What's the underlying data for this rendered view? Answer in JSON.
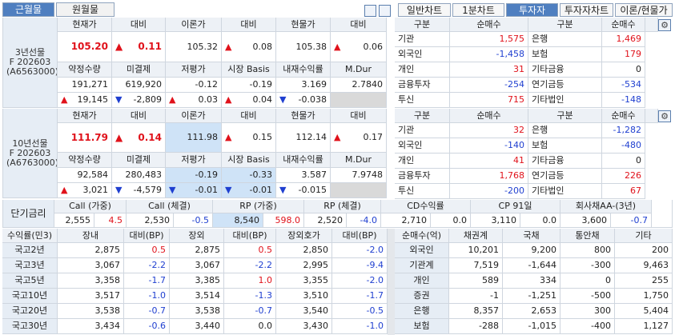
{
  "tabs": {
    "month": [
      "근월물",
      "원월물"
    ],
    "view": [
      "일반차트",
      "1분차트",
      "투자자",
      "투자자차트",
      "이론/현물가"
    ]
  },
  "futures": [
    {
      "name": "3년선물",
      "code": "F 202603",
      "id": "(A6563000)",
      "header1": [
        "현재가",
        "대비",
        "이론가",
        "대비",
        "현물가",
        "대비"
      ],
      "row1": [
        "105.20",
        {
          "arrow": "▲",
          "value": "0.11"
        },
        "105.32",
        {
          "arrow": "▲",
          "value": "0.08"
        },
        "105.38",
        {
          "arrow": "▲",
          "value": "0.06"
        }
      ],
      "header2": [
        "약정수량",
        "미결제",
        "저평가",
        "시장 Basis",
        "내재수익률",
        "M.Dur"
      ],
      "row2": [
        "191,271",
        "619,920",
        "-0.12",
        "-0.19",
        "3.169",
        "2.7840"
      ],
      "row3": [
        {
          "arrow": "▲",
          "value": "19,145"
        },
        {
          "arrow": "▼",
          "value": "-2,809"
        },
        {
          "arrow": "▲",
          "value": "0.03"
        },
        {
          "arrow": "▲",
          "value": "0.04"
        },
        {
          "arrow": "▼",
          "value": "-0.038"
        }
      ]
    },
    {
      "name": "10년선물",
      "code": "F 202603",
      "id": "(A6763000)",
      "header1": [
        "현재가",
        "대비",
        "이론가",
        "대비",
        "현물가",
        "대비"
      ],
      "row1": [
        "111.79",
        {
          "arrow": "▲",
          "value": "0.14"
        },
        "111.98",
        {
          "arrow": "▲",
          "value": "0.15"
        },
        "112.14",
        {
          "arrow": "▲",
          "value": "0.17"
        }
      ],
      "header2": [
        "약정수량",
        "미결제",
        "저평가",
        "시장 Basis",
        "내재수익률",
        "M.Dur"
      ],
      "row2": [
        "92,584",
        "280,483",
        "-0.19",
        "-0.33",
        "3.587",
        "7.9748"
      ],
      "row3": [
        {
          "arrow": "▲",
          "value": "3,021"
        },
        {
          "arrow": "▼",
          "value": "-4,579"
        },
        {
          "arrow": "▼",
          "value": "-0.01"
        },
        {
          "arrow": "▼",
          "value": "-0.01"
        },
        {
          "arrow": "▼",
          "value": "-0.015"
        }
      ]
    }
  ],
  "investors": [
    {
      "header": [
        "구분",
        "순매수",
        "구분",
        "순매수"
      ],
      "rows": [
        [
          "기관",
          "1,575",
          "은행",
          "1,469"
        ],
        [
          "외국인",
          "-1,458",
          "보험",
          "179"
        ],
        [
          "개인",
          "31",
          "기타금융",
          "0"
        ],
        [
          "금융투자",
          "-254",
          "연기금등",
          "-534"
        ],
        [
          "투신",
          "715",
          "기타법인",
          "-148"
        ]
      ]
    },
    {
      "header": [
        "구분",
        "순매수",
        "구분",
        "순매수"
      ],
      "rows": [
        [
          "기관",
          "32",
          "은행",
          "-1,282"
        ],
        [
          "외국인",
          "-140",
          "보험",
          "-480"
        ],
        [
          "개인",
          "41",
          "기타금융",
          "0"
        ],
        [
          "금융투자",
          "1,768",
          "연기금등",
          "226"
        ],
        [
          "투신",
          "-200",
          "기타법인",
          "67"
        ]
      ]
    }
  ],
  "rates": {
    "label": "단기금리",
    "headers": [
      "Call (가중)",
      "Call (체결)",
      "RP (가중)",
      "RP (체결)",
      "CD수익률",
      "CP 91일",
      "회사채AA-(3년)"
    ],
    "values": [
      [
        "2,555",
        "4.5"
      ],
      [
        "2,530",
        "-0.5"
      ],
      [
        "8,540",
        "598.0"
      ],
      [
        "2,520",
        "-4.0"
      ],
      [
        "2,710",
        "0.0"
      ],
      [
        "3,110",
        "0.0"
      ],
      [
        "3,600",
        "-0.7"
      ]
    ]
  },
  "yields": {
    "header": [
      "수익률(민3)",
      "장내",
      "대비(BP)",
      "장외",
      "대비(BP)",
      "장외호가",
      "대비(BP)"
    ],
    "rows": [
      [
        "국고2년",
        "2,875",
        "0.5",
        "2,875",
        "0.5",
        "2,850",
        "-2.0"
      ],
      [
        "국고3년",
        "3,067",
        "-2.2",
        "3,067",
        "-2.2",
        "2,995",
        "-9.4"
      ],
      [
        "국고5년",
        "3,358",
        "-1.7",
        "3,385",
        "1.0",
        "3,355",
        "-2.0"
      ],
      [
        "국고10년",
        "3,517",
        "-1.0",
        "3,514",
        "-1.3",
        "3,510",
        "-1.7"
      ],
      [
        "국고20년",
        "3,538",
        "-0.7",
        "3,538",
        "-0.7",
        "3,540",
        "-0.5"
      ],
      [
        "국고30년",
        "3,434",
        "-0.6",
        "3,440",
        "0.0",
        "3,430",
        "-1.0"
      ]
    ]
  },
  "netbuy": {
    "header": [
      "순매수(억)",
      "채권계",
      "국채",
      "통안채",
      "기타"
    ],
    "rows": [
      [
        "외국인",
        "10,201",
        "9,200",
        "800",
        "200"
      ],
      [
        "기관계",
        "7,519",
        "-1,644",
        "-300",
        "9,463"
      ],
      [
        "개인",
        "589",
        "334",
        "0",
        "255"
      ],
      [
        "증권",
        "-1",
        "-1,251",
        "-500",
        "1,750"
      ],
      [
        "은행",
        "8,357",
        "2,653",
        "300",
        "5,404"
      ],
      [
        "보험",
        "-288",
        "-1,015",
        "-400",
        "1,127"
      ]
    ]
  }
}
